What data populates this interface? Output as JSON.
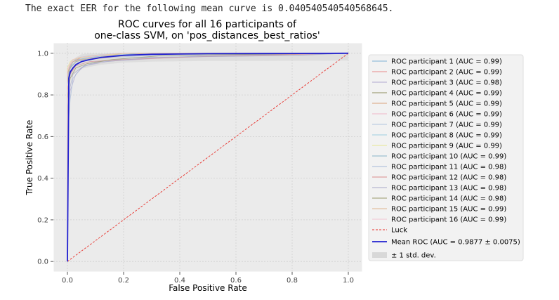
{
  "output_text": "The exact EER for the following mean curve is 0.040540540540568645.",
  "chart_data": {
    "type": "line",
    "title_lines": [
      "ROC curves for all 16 participants of",
      "one-class SVM, on 'pos_distances_best_ratios'"
    ],
    "xlabel": "False Positive Rate",
    "ylabel": "True Positive Rate",
    "xlim": [
      -0.05,
      1.05
    ],
    "ylim": [
      -0.05,
      1.05
    ],
    "xticks": [
      0.0,
      0.2,
      0.4,
      0.6,
      0.8,
      1.0
    ],
    "yticks": [
      0.0,
      0.2,
      0.4,
      0.6,
      0.8,
      1.0
    ],
    "tick_labels": [
      "0.0",
      "0.2",
      "0.4",
      "0.6",
      "0.8",
      "1.0"
    ],
    "grid": true,
    "legend_position": "right",
    "series": [
      {
        "name": "ROC participant 1 (AUC = 0.99)",
        "color": "#7fb3d5",
        "x": [
          0,
          0,
          0.01,
          0.02,
          0.04,
          0.08,
          0.15,
          0.3,
          1
        ],
        "y": [
          0,
          0.85,
          0.93,
          0.96,
          0.97,
          0.98,
          0.99,
          1,
          1
        ]
      },
      {
        "name": "ROC participant 2 (AUC = 0.99)",
        "color": "#e88a8a",
        "x": [
          0,
          0,
          0.01,
          0.02,
          0.05,
          0.1,
          0.2,
          1
        ],
        "y": [
          0,
          0.88,
          0.94,
          0.96,
          0.98,
          0.99,
          1,
          1
        ]
      },
      {
        "name": "ROC participant 3 (AUC = 0.98)",
        "color": "#b0a8d0",
        "x": [
          0,
          0,
          0.01,
          0.03,
          0.06,
          0.12,
          0.25,
          0.5,
          1
        ],
        "y": [
          0,
          0.7,
          0.82,
          0.9,
          0.94,
          0.96,
          0.97,
          0.99,
          1
        ]
      },
      {
        "name": "ROC participant 4 (AUC = 0.99)",
        "color": "#8f8f5e",
        "x": [
          0,
          0,
          0.01,
          0.02,
          0.05,
          0.1,
          0.2,
          1
        ],
        "y": [
          0,
          0.9,
          0.95,
          0.97,
          0.98,
          0.99,
          1,
          1
        ]
      },
      {
        "name": "ROC participant 5 (AUC = 0.99)",
        "color": "#d9a27a",
        "x": [
          0,
          0,
          0.01,
          0.03,
          0.06,
          0.15,
          0.28,
          1
        ],
        "y": [
          0,
          0.86,
          0.93,
          0.96,
          0.97,
          0.98,
          1,
          1
        ]
      },
      {
        "name": "ROC participant 6 (AUC = 0.99)",
        "color": "#f0b6c8",
        "x": [
          0,
          0,
          0.01,
          0.02,
          0.05,
          0.12,
          0.2,
          1
        ],
        "y": [
          0,
          0.92,
          0.95,
          0.97,
          0.98,
          0.99,
          1,
          1
        ]
      },
      {
        "name": "ROC participant 7 (AUC = 0.99)",
        "color": "#b0c4de",
        "x": [
          0,
          0,
          0.01,
          0.03,
          0.07,
          0.14,
          0.3,
          1
        ],
        "y": [
          0,
          0.8,
          0.9,
          0.95,
          0.97,
          0.98,
          0.99,
          1
        ]
      },
      {
        "name": "ROC participant 8 (AUC = 0.99)",
        "color": "#9ccfe0",
        "x": [
          0,
          0,
          0.01,
          0.02,
          0.04,
          0.09,
          0.18,
          1
        ],
        "y": [
          0,
          0.89,
          0.94,
          0.96,
          0.98,
          0.99,
          1,
          1
        ]
      },
      {
        "name": "ROC participant 9 (AUC = 0.99)",
        "color": "#e6e690",
        "x": [
          0,
          0,
          0.01,
          0.02,
          0.05,
          0.1,
          0.22,
          1
        ],
        "y": [
          0,
          0.93,
          0.96,
          0.97,
          0.98,
          0.99,
          1,
          1
        ]
      },
      {
        "name": "ROC participant 10 (AUC = 0.99)",
        "color": "#88b4c8",
        "x": [
          0,
          0,
          0.01,
          0.03,
          0.06,
          0.13,
          0.25,
          1
        ],
        "y": [
          0,
          0.87,
          0.93,
          0.96,
          0.97,
          0.98,
          1,
          1
        ]
      },
      {
        "name": "ROC participant 11 (AUC = 0.98)",
        "color": "#a4b8d8",
        "x": [
          0,
          0,
          0.01,
          0.02,
          0.05,
          0.1,
          0.25,
          0.8,
          1
        ],
        "y": [
          0,
          0.6,
          0.78,
          0.88,
          0.93,
          0.96,
          0.98,
          0.99,
          1
        ]
      },
      {
        "name": "ROC participant 12 (AUC = 0.98)",
        "color": "#d98c8c",
        "x": [
          0,
          0,
          0.01,
          0.03,
          0.08,
          0.2,
          0.5,
          1
        ],
        "y": [
          0,
          0.82,
          0.9,
          0.94,
          0.96,
          0.97,
          0.985,
          1
        ]
      },
      {
        "name": "ROC participant 13 (AUC = 0.98)",
        "color": "#a8a8c8",
        "x": [
          0,
          0,
          0.01,
          0.02,
          0.06,
          0.14,
          0.3,
          0.82,
          1
        ],
        "y": [
          0,
          0.72,
          0.84,
          0.9,
          0.94,
          0.96,
          0.98,
          0.99,
          1
        ]
      },
      {
        "name": "ROC participant 14 (AUC = 0.98)",
        "color": "#9a9a6a",
        "x": [
          0,
          0,
          0.01,
          0.03,
          0.07,
          0.16,
          0.35,
          1
        ],
        "y": [
          0,
          0.78,
          0.88,
          0.93,
          0.95,
          0.97,
          0.99,
          1
        ]
      },
      {
        "name": "ROC participant 15 (AUC = 0.99)",
        "color": "#deb48c",
        "x": [
          0,
          0,
          0.01,
          0.02,
          0.05,
          0.11,
          0.2,
          1
        ],
        "y": [
          0,
          0.9,
          0.94,
          0.96,
          0.97,
          0.98,
          1,
          1
        ]
      },
      {
        "name": "ROC participant 16 (AUC = 0.99)",
        "color": "#f2c4d2",
        "x": [
          0,
          0,
          0.01,
          0.02,
          0.04,
          0.1,
          0.18,
          1
        ],
        "y": [
          0,
          0.91,
          0.95,
          0.97,
          0.98,
          0.99,
          1,
          1
        ]
      },
      {
        "name": "Luck",
        "color": "#e8302a",
        "dashed": true,
        "x": [
          0,
          1
        ],
        "y": [
          0,
          1
        ]
      },
      {
        "name": "Mean ROC (AUC = 0.9877 ± 0.0075)",
        "color": "#2020d0",
        "bold": true,
        "x": [
          0,
          0.005,
          0.01,
          0.02,
          0.03,
          0.05,
          0.08,
          0.12,
          0.2,
          0.3,
          0.5,
          0.8,
          1.0
        ],
        "y": [
          0,
          0.88,
          0.91,
          0.93,
          0.945,
          0.96,
          0.97,
          0.98,
          0.99,
          0.995,
          0.998,
          0.999,
          1.0
        ]
      }
    ],
    "band_label": "± 1 std. dev.",
    "band_color": "#d8d8d8"
  }
}
